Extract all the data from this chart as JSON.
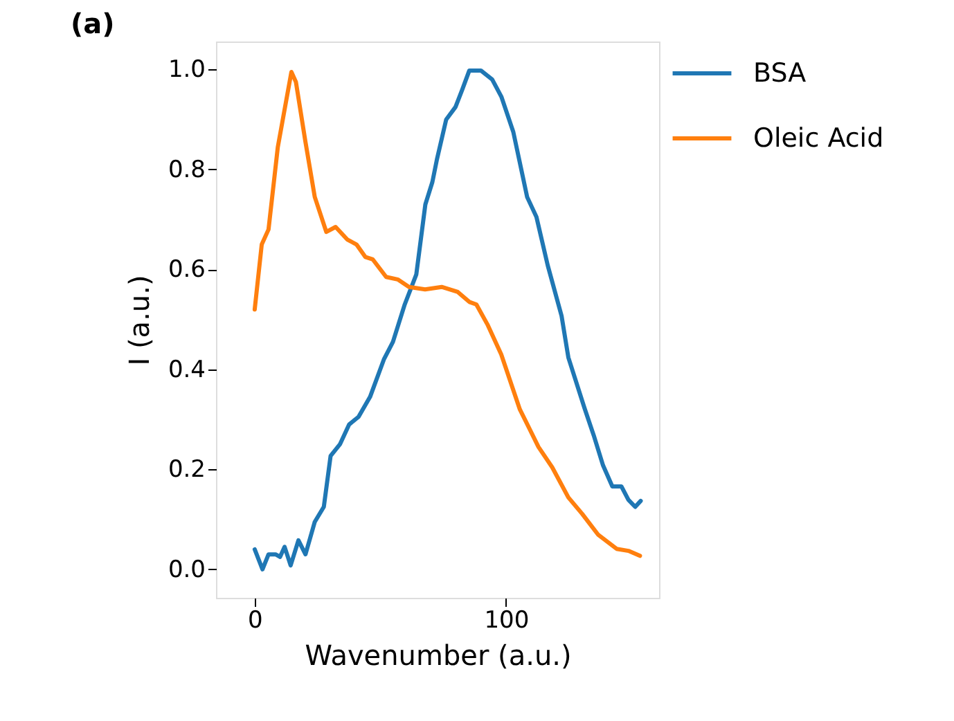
{
  "chart_data": {
    "type": "line",
    "title": "(a)",
    "xlabel": "Wavenumber (a.u.)",
    "ylabel": "I (a.u.)",
    "xlim": [
      -15.4,
      160.9
    ],
    "ylim": [
      -0.057,
      1.056
    ],
    "xticks": [
      0,
      100
    ],
    "yticks": [
      {
        "value": 0,
        "label": "0.0"
      },
      0.2,
      0.4,
      0.6,
      0.8,
      {
        "value": 1,
        "label": "1.0"
      }
    ],
    "grid": false,
    "legend": "right",
    "marker": "none",
    "line_style": "solid",
    "series": [
      {
        "name": "BSA",
        "color": "#1f77b4",
        "x": [
          0,
          3.1,
          5.5,
          8.3,
          10.1,
          11.9,
          14.3,
          17.4,
          20.2,
          23.9,
          27.5,
          30.2,
          33.9,
          37.6,
          41.3,
          45.9,
          51.4,
          55,
          59.7,
          64.3,
          67.9,
          70.7,
          72.5,
          76.2,
          79.9,
          82.6,
          85.4,
          90,
          94.5,
          98.2,
          102.9,
          108.4,
          112.1,
          116.6,
          122.1,
          124.8,
          131.2,
          134.9,
          138.6,
          142.3,
          145.9,
          148.7,
          151.4,
          153.6
        ],
        "values": [
          0.04,
          0.0,
          0.03,
          0.03,
          0.025,
          0.045,
          0.008,
          0.058,
          0.03,
          0.095,
          0.125,
          0.227,
          0.25,
          0.29,
          0.305,
          0.345,
          0.42,
          0.455,
          0.53,
          0.59,
          0.73,
          0.775,
          0.82,
          0.9,
          0.925,
          0.96,
          0.998,
          0.998,
          0.98,
          0.945,
          0.875,
          0.745,
          0.705,
          0.608,
          0.507,
          0.424,
          0.323,
          0.268,
          0.208,
          0.166,
          0.166,
          0.139,
          0.125,
          0.137
        ]
      },
      {
        "name": "Oleic Acid",
        "color": "#ff7f0e",
        "x": [
          0,
          2.8,
          5.5,
          9.2,
          11,
          14.6,
          16.4,
          20.2,
          23.9,
          28.5,
          32.2,
          36.8,
          40.5,
          44,
          47,
          52.3,
          56.9,
          61.4,
          67.8,
          74.4,
          80.8,
          85.4,
          88.2,
          92.6,
          98.1,
          105.5,
          112.9,
          118.4,
          124.8,
          130.3,
          136.7,
          144,
          148.7,
          153.3
        ],
        "values": [
          0.52,
          0.65,
          0.68,
          0.845,
          0.895,
          0.995,
          0.975,
          0.855,
          0.745,
          0.675,
          0.685,
          0.66,
          0.65,
          0.625,
          0.62,
          0.585,
          0.58,
          0.565,
          0.56,
          0.565,
          0.555,
          0.535,
          0.53,
          0.49,
          0.43,
          0.32,
          0.245,
          0.204,
          0.144,
          0.111,
          0.069,
          0.041,
          0.037,
          0.027
        ]
      }
    ]
  }
}
